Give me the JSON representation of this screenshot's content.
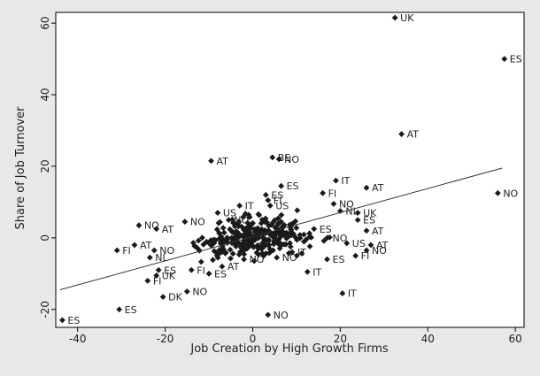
{
  "chart_data": {
    "type": "scatter",
    "title": "",
    "xlabel": "Job Creation by High Growth Firms",
    "ylabel": "Share of Job Turnover",
    "xlim": [
      -45,
      62
    ],
    "ylim": [
      -25,
      63
    ],
    "x_ticks": [
      -40,
      -20,
      0,
      20,
      40,
      60
    ],
    "y_ticks": [
      -20,
      0,
      20,
      40,
      60
    ],
    "x_tick_labels": [
      "-40",
      "-20",
      "0",
      "20",
      "40",
      "60"
    ],
    "y_tick_labels": [
      "-20",
      "0",
      "20",
      "40",
      "60"
    ],
    "grid": false,
    "legend": "none",
    "colors": {
      "plot_bg": "#ffffff",
      "outer_bg": "#e8e8e8",
      "marker": "#1a1a1a",
      "fit_line": "#333333"
    },
    "fit_line": {
      "x": [
        -44,
        57
      ],
      "y": [
        -14.5,
        19.5
      ]
    },
    "labeled_points": [
      {
        "x": 32.5,
        "y": 61.5,
        "label": "UK"
      },
      {
        "x": 57.5,
        "y": 50,
        "label": "ES"
      },
      {
        "x": 34,
        "y": 29,
        "label": "AT"
      },
      {
        "x": -9.5,
        "y": 21.5,
        "label": "AT"
      },
      {
        "x": 4.5,
        "y": 22.5,
        "label": "BE"
      },
      {
        "x": 6,
        "y": 22,
        "label": "NO"
      },
      {
        "x": 56,
        "y": 12.5,
        "label": "NO"
      },
      {
        "x": 26,
        "y": 14,
        "label": "AT"
      },
      {
        "x": 19,
        "y": 16,
        "label": "IT"
      },
      {
        "x": 6.5,
        "y": 14.5,
        "label": "ES"
      },
      {
        "x": 16,
        "y": 12.5,
        "label": "FI"
      },
      {
        "x": 18.5,
        "y": 9.5,
        "label": "NO"
      },
      {
        "x": 20,
        "y": 7.5,
        "label": "NL"
      },
      {
        "x": 24,
        "y": 7,
        "label": "UK"
      },
      {
        "x": 3,
        "y": 12,
        "label": "ES"
      },
      {
        "x": 3.5,
        "y": 10.5,
        "label": "FI"
      },
      {
        "x": -3,
        "y": 9,
        "label": "IT"
      },
      {
        "x": 4,
        "y": 9,
        "label": "US"
      },
      {
        "x": -15.5,
        "y": 4.5,
        "label": "NO"
      },
      {
        "x": -8,
        "y": 7,
        "label": "US"
      },
      {
        "x": -26,
        "y": 3.5,
        "label": "NO"
      },
      {
        "x": -22,
        "y": 2.5,
        "label": "AT"
      },
      {
        "x": -5.5,
        "y": 5,
        "label": "NO"
      },
      {
        "x": 24,
        "y": 5,
        "label": "ES"
      },
      {
        "x": 26,
        "y": 2,
        "label": "AT"
      },
      {
        "x": 27,
        "y": -2,
        "label": "AT"
      },
      {
        "x": 26,
        "y": -3.5,
        "label": "NO"
      },
      {
        "x": 21.5,
        "y": -1.5,
        "label": "US"
      },
      {
        "x": 23.5,
        "y": -5,
        "label": "FI"
      },
      {
        "x": -27,
        "y": -2,
        "label": "AT"
      },
      {
        "x": -31,
        "y": -3.5,
        "label": "FI"
      },
      {
        "x": -22.5,
        "y": -3.5,
        "label": "NO"
      },
      {
        "x": -23.5,
        "y": -5.5,
        "label": "NL"
      },
      {
        "x": -21.5,
        "y": -9,
        "label": "ES"
      },
      {
        "x": -22,
        "y": -10.5,
        "label": "UK"
      },
      {
        "x": -24,
        "y": -12,
        "label": "FI"
      },
      {
        "x": -15,
        "y": -15,
        "label": "NO"
      },
      {
        "x": -20.5,
        "y": -16.5,
        "label": "DK"
      },
      {
        "x": -30.5,
        "y": -20,
        "label": "ES"
      },
      {
        "x": -43.5,
        "y": -23,
        "label": "ES"
      },
      {
        "x": 3.5,
        "y": -21.5,
        "label": "NO"
      },
      {
        "x": 20.5,
        "y": -15.5,
        "label": "IT"
      },
      {
        "x": 12.5,
        "y": -9.5,
        "label": "IT"
      },
      {
        "x": 17,
        "y": -6,
        "label": "ES"
      },
      {
        "x": 9,
        "y": -4,
        "label": "IT"
      },
      {
        "x": 14,
        "y": 2.5,
        "label": "ES"
      },
      {
        "x": 17,
        "y": 0,
        "label": "NO"
      },
      {
        "x": 5.5,
        "y": -5.5,
        "label": "NO"
      },
      {
        "x": -2,
        "y": -6,
        "label": "NO"
      },
      {
        "x": -10,
        "y": -10,
        "label": "ES"
      },
      {
        "x": -14,
        "y": -9,
        "label": "FI"
      },
      {
        "x": -7,
        "y": -8,
        "label": "AT"
      }
    ],
    "unlabeled_points_count": 300
  }
}
